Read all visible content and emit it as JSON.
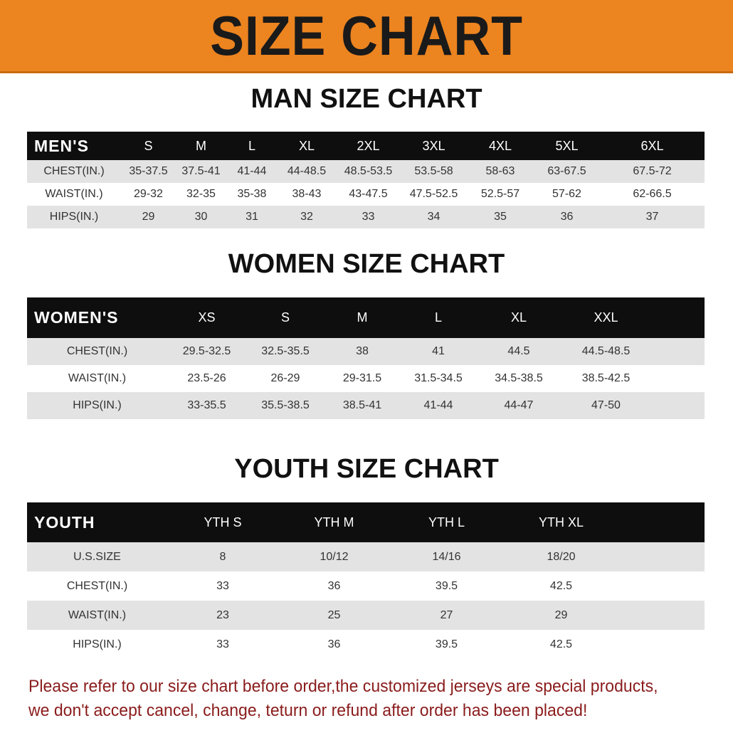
{
  "title": "SIZE CHART",
  "men": {
    "title": "MAN SIZE CHART",
    "header": "MEN'S",
    "sizes": [
      "S",
      "M",
      "L",
      "XL",
      "2XL",
      "3XL",
      "4XL",
      "5XL",
      "6XL"
    ],
    "rows": [
      {
        "label": "CHEST(IN.)",
        "values": [
          "35-37.5",
          "37.5-41",
          "41-44",
          "44-48.5",
          "48.5-53.5",
          "53.5-58",
          "58-63",
          "63-67.5",
          "67.5-72"
        ]
      },
      {
        "label": "WAIST(IN.)",
        "values": [
          "29-32",
          "32-35",
          "35-38",
          "38-43",
          "43-47.5",
          "47.5-52.5",
          "52.5-57",
          "57-62",
          "62-66.5"
        ]
      },
      {
        "label": "HIPS(IN.)",
        "values": [
          "29",
          "30",
          "31",
          "32",
          "33",
          "34",
          "35",
          "36",
          "37"
        ]
      }
    ]
  },
  "women": {
    "title": "WOMEN SIZE CHART",
    "header": "WOMEN'S",
    "sizes": [
      "XS",
      "S",
      "M",
      "L",
      "XL",
      "XXL"
    ],
    "rows": [
      {
        "label": "CHEST(IN.)",
        "values": [
          "29.5-32.5",
          "32.5-35.5",
          "38",
          "41",
          "44.5",
          "44.5-48.5"
        ]
      },
      {
        "label": "WAIST(IN.)",
        "values": [
          "23.5-26",
          "26-29",
          "29-31.5",
          "31.5-34.5",
          "34.5-38.5",
          "38.5-42.5"
        ]
      },
      {
        "label": "HIPS(IN.)",
        "values": [
          "33-35.5",
          "35.5-38.5",
          "38.5-41",
          "41-44",
          "44-47",
          "47-50"
        ]
      }
    ]
  },
  "youth": {
    "title": "YOUTH SIZE CHART",
    "header": "YOUTH",
    "sizes": [
      "YTH S",
      "YTH M",
      "YTH L",
      "YTH XL"
    ],
    "rows": [
      {
        "label": "U.S.SIZE",
        "values": [
          "8",
          "10/12",
          "14/16",
          "18/20"
        ]
      },
      {
        "label": "CHEST(IN.)",
        "values": [
          "33",
          "36",
          "39.5",
          "42.5"
        ]
      },
      {
        "label": "WAIST(IN.)",
        "values": [
          "23",
          "25",
          "27",
          "29"
        ]
      },
      {
        "label": "HIPS(IN.)",
        "values": [
          "33",
          "36",
          "39.5",
          "42.5"
        ]
      }
    ]
  },
  "note": {
    "line1": "Please refer to our size chart before order,the customized jerseys are special products,",
    "line2": "we don't accept cancel, change, teturn or refund after order has been placed!"
  },
  "colors": {
    "banner": "#ec8420",
    "header_bg": "#0e0e0e",
    "stripe": "#e3e3e3",
    "note": "#8a1c1c"
  }
}
